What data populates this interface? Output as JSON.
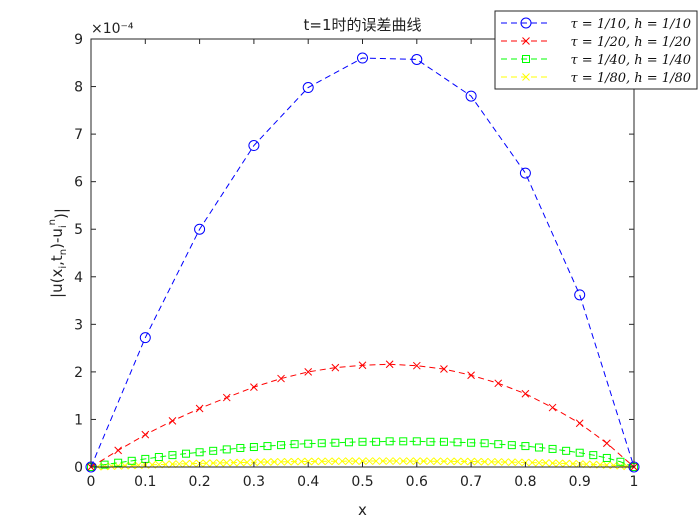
{
  "chart_data": {
    "type": "line",
    "title": "t=1时的误差曲线",
    "xlabel": "x",
    "ylabel": "|u(x_i, t_n) - u_i^n|",
    "ylabel_parts": {
      "a": "|u(x",
      "b": "i",
      "c": ",t",
      "d": "n",
      "e": ")-u",
      "f": "i",
      "g": "n",
      "h": ")|"
    },
    "y_exponent": "×10⁻⁴",
    "xlim": [
      0,
      1
    ],
    "ylim": [
      0,
      9
    ],
    "xticks": [
      "0",
      "0.1",
      "0.2",
      "0.3",
      "0.4",
      "0.5",
      "0.6",
      "0.7",
      "0.8",
      "0.9",
      "1"
    ],
    "yticks": [
      "0",
      "1",
      "2",
      "3",
      "4",
      "5",
      "6",
      "7",
      "8",
      "9"
    ],
    "grid": false,
    "legend_position": "top-right",
    "series": [
      {
        "name": "τ = 1/10, h = 1/10",
        "color": "#0000ff",
        "marker": "circle",
        "x": [
          0,
          0.1,
          0.2,
          0.3,
          0.4,
          0.5,
          0.6,
          0.7,
          0.8,
          0.9,
          1
        ],
        "y": [
          0,
          2.72,
          5.0,
          6.76,
          7.98,
          8.6,
          8.57,
          7.8,
          6.18,
          3.62,
          0
        ]
      },
      {
        "name": "τ = 1/20, h = 1/20",
        "color": "#ff0000",
        "marker": "x",
        "x": [
          0,
          0.05,
          0.1,
          0.15,
          0.2,
          0.25,
          0.3,
          0.35,
          0.4,
          0.45,
          0.5,
          0.55,
          0.6,
          0.65,
          0.7,
          0.75,
          0.8,
          0.85,
          0.9,
          0.95,
          1
        ],
        "y": [
          0,
          0.35,
          0.68,
          0.97,
          1.23,
          1.46,
          1.68,
          1.86,
          2.0,
          2.09,
          2.14,
          2.16,
          2.13,
          2.06,
          1.93,
          1.76,
          1.54,
          1.25,
          0.92,
          0.5,
          0
        ]
      },
      {
        "name": "τ = 1/40, h = 1/40",
        "color": "#00ff00",
        "marker": "square",
        "x": [
          0,
          0.025,
          0.05,
          0.075,
          0.1,
          0.125,
          0.15,
          0.175,
          0.2,
          0.225,
          0.25,
          0.275,
          0.3,
          0.325,
          0.35,
          0.375,
          0.4,
          0.425,
          0.45,
          0.475,
          0.5,
          0.525,
          0.55,
          0.575,
          0.6,
          0.625,
          0.65,
          0.675,
          0.7,
          0.725,
          0.75,
          0.775,
          0.8,
          0.825,
          0.85,
          0.875,
          0.9,
          0.925,
          0.95,
          0.975,
          1
        ],
        "y": [
          0,
          0.05,
          0.09,
          0.13,
          0.17,
          0.21,
          0.25,
          0.28,
          0.31,
          0.34,
          0.37,
          0.4,
          0.42,
          0.44,
          0.46,
          0.48,
          0.49,
          0.5,
          0.51,
          0.52,
          0.53,
          0.53,
          0.54,
          0.54,
          0.54,
          0.53,
          0.53,
          0.52,
          0.51,
          0.5,
          0.48,
          0.46,
          0.44,
          0.41,
          0.38,
          0.34,
          0.3,
          0.25,
          0.19,
          0.11,
          0
        ]
      },
      {
        "name": "τ = 1/80, h = 1/80",
        "color": "#ffff00",
        "marker": "x",
        "x": [
          0,
          0.0125,
          0.025,
          0.0375,
          0.05,
          0.0625,
          0.075,
          0.0875,
          0.1,
          0.1125,
          0.125,
          0.1375,
          0.15,
          0.1625,
          0.175,
          0.1875,
          0.2,
          0.2125,
          0.225,
          0.2375,
          0.25,
          0.2625,
          0.275,
          0.2875,
          0.3,
          0.3125,
          0.325,
          0.3375,
          0.35,
          0.3625,
          0.375,
          0.3875,
          0.4,
          0.4125,
          0.425,
          0.4375,
          0.45,
          0.4625,
          0.475,
          0.4875,
          0.5,
          0.5125,
          0.525,
          0.5375,
          0.55,
          0.5625,
          0.575,
          0.5875,
          0.6,
          0.6125,
          0.625,
          0.6375,
          0.65,
          0.6625,
          0.675,
          0.6875,
          0.7,
          0.7125,
          0.725,
          0.7375,
          0.75,
          0.7625,
          0.775,
          0.7875,
          0.8,
          0.8125,
          0.825,
          0.8375,
          0.85,
          0.8625,
          0.875,
          0.8875,
          0.9,
          0.9125,
          0.925,
          0.9375,
          0.95,
          0.9625,
          0.975,
          0.9875,
          1
        ],
        "y": [
          0,
          0.006,
          0.011,
          0.017,
          0.022,
          0.027,
          0.032,
          0.037,
          0.042,
          0.047,
          0.051,
          0.056,
          0.06,
          0.064,
          0.068,
          0.072,
          0.076,
          0.079,
          0.083,
          0.086,
          0.089,
          0.092,
          0.095,
          0.098,
          0.1,
          0.103,
          0.105,
          0.107,
          0.109,
          0.111,
          0.113,
          0.115,
          0.116,
          0.118,
          0.119,
          0.12,
          0.121,
          0.122,
          0.123,
          0.124,
          0.124,
          0.125,
          0.125,
          0.125,
          0.125,
          0.125,
          0.125,
          0.124,
          0.124,
          0.123,
          0.122,
          0.121,
          0.12,
          0.119,
          0.118,
          0.116,
          0.115,
          0.113,
          0.111,
          0.109,
          0.107,
          0.104,
          0.102,
          0.099,
          0.096,
          0.093,
          0.089,
          0.086,
          0.082,
          0.078,
          0.073,
          0.069,
          0.064,
          0.058,
          0.053,
          0.047,
          0.04,
          0.033,
          0.025,
          0.014,
          0
        ]
      }
    ]
  }
}
